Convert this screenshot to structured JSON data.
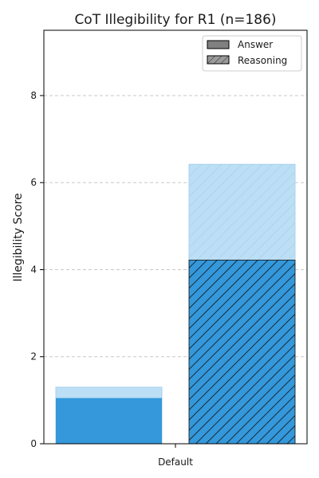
{
  "chart_data": {
    "type": "bar",
    "title": "CoT Illegibility for R1 (n=186)",
    "xlabel": "",
    "ylabel": "Illegibility Score",
    "categories": [
      "Default"
    ],
    "ylim": [
      0,
      9.5
    ],
    "yticks": [
      0,
      2,
      4,
      6,
      8
    ],
    "grid": true,
    "legend_position": "top-right",
    "series": [
      {
        "name": "Answer",
        "mean": [
          1.05
        ],
        "upper": [
          1.3
        ],
        "style": "solid",
        "color": "#3498db",
        "light_color": "#bcdff5"
      },
      {
        "name": "Reasoning",
        "mean": [
          4.22
        ],
        "upper": [
          6.42
        ],
        "style": "hatched",
        "color": "#3498db",
        "light_color": "#bcdff5"
      }
    ],
    "legend": [
      {
        "name": "Answer",
        "swatch": "solid-gray"
      },
      {
        "name": "Reasoning",
        "swatch": "hatched-gray"
      }
    ]
  }
}
